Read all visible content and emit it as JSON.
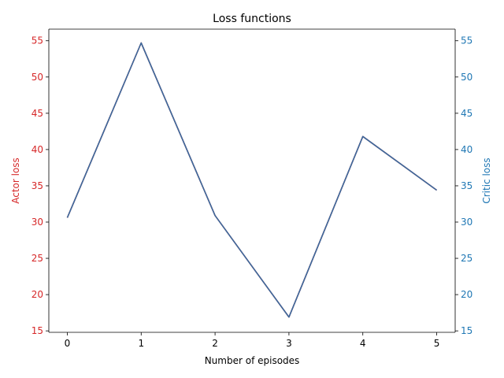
{
  "chart_data": {
    "type": "line",
    "title": "Loss functions",
    "xlabel": "Number of episodes",
    "ylabel_left": "Actor loss",
    "ylabel_right": "Critic loss",
    "x": [
      0,
      1,
      2,
      3,
      4,
      5
    ],
    "xticks": [
      "0",
      "1",
      "2",
      "3",
      "4",
      "5"
    ],
    "xlim": [
      -0.25,
      5.25
    ],
    "ylim": [
      14.8,
      56.6
    ],
    "yticks": [
      "15",
      "20",
      "25",
      "30",
      "35",
      "40",
      "45",
      "50",
      "55"
    ],
    "series": [
      {
        "axis": "left",
        "color": "#d62728",
        "values": [
          30.6,
          54.7,
          30.9,
          16.9,
          41.8,
          34.4
        ]
      },
      {
        "axis": "right",
        "color": "#1f77b4",
        "values": [
          30.6,
          54.7,
          30.9,
          16.9,
          41.8,
          34.4
        ]
      }
    ],
    "grid": false,
    "colors": {
      "left_axis": "#d62728",
      "right_axis": "#1f77b4",
      "line_overlap": "#3a6a9e"
    }
  }
}
